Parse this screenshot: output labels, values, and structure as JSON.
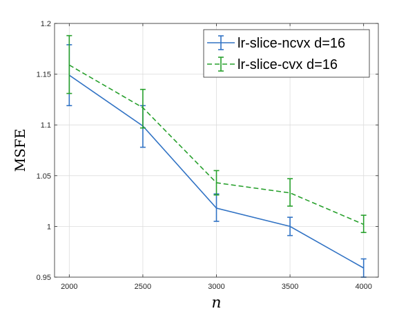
{
  "chart_data": {
    "type": "line",
    "title": "",
    "xlabel": "n",
    "ylabel": "MSFE",
    "x": [
      2000,
      2500,
      3000,
      3500,
      4000
    ],
    "xlim": [
      1900,
      4100
    ],
    "ylim": [
      0.95,
      1.2
    ],
    "xticks": [
      2000,
      2500,
      3000,
      3500,
      4000
    ],
    "xtick_labels": [
      "2000",
      "2500",
      "3000",
      "3500",
      "4000"
    ],
    "yticks": [
      0.95,
      1.0,
      1.05,
      1.1,
      1.15,
      1.2
    ],
    "ytick_labels": [
      "0.95",
      "1",
      "1.05",
      "1.1",
      "1.15",
      "1.2"
    ],
    "grid": true,
    "legend_position": "top-right",
    "series": [
      {
        "name": "lr-slice-ncvx d=16",
        "values": [
          1.149,
          1.099,
          1.018,
          1.0,
          0.959
        ],
        "err_low": [
          1.119,
          1.078,
          1.005,
          0.991,
          0.95
        ],
        "err_high": [
          1.179,
          1.119,
          1.032,
          1.009,
          0.968
        ],
        "color": "#3072c4",
        "style": "solid"
      },
      {
        "name": "lr-slice-cvx d=16",
        "values": [
          1.159,
          1.117,
          1.043,
          1.033,
          1.002
        ],
        "err_low": [
          1.131,
          1.097,
          1.031,
          1.02,
          0.994
        ],
        "err_high": [
          1.188,
          1.135,
          1.055,
          1.047,
          1.011
        ],
        "color": "#27a02c",
        "style": "dashed"
      }
    ]
  }
}
